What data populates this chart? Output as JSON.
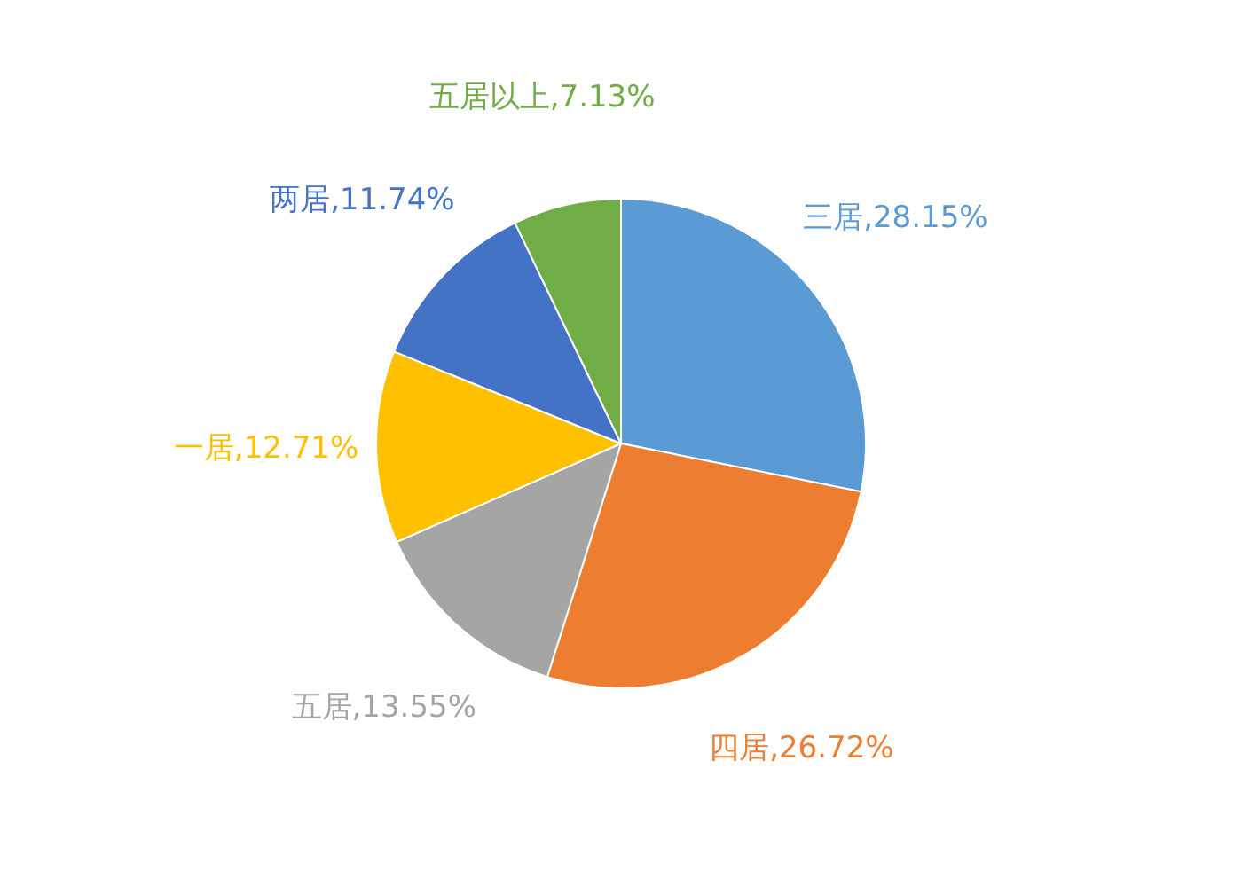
{
  "chart_data": {
    "type": "pie",
    "categories": [
      "三居",
      "四居",
      "五居",
      "一居",
      "两居",
      "五居以上"
    ],
    "values": [
      28.15,
      26.72,
      13.55,
      12.71,
      11.74,
      7.13
    ],
    "value_labels": [
      "28.15%",
      "26.72%",
      "13.55%",
      "12.71%",
      "11.74%",
      "7.13%"
    ],
    "colors": [
      "#5b9bd5",
      "#ed7d31",
      "#a5a5a5",
      "#ffc000",
      "#4472c4",
      "#70ad47"
    ],
    "legend": false
  }
}
